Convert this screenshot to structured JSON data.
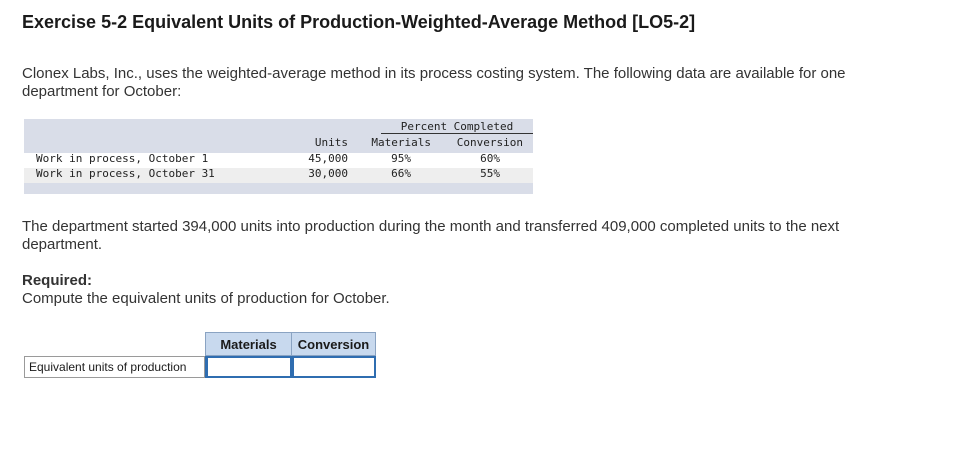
{
  "title": "Exercise 5-2 Equivalent Units of Production-Weighted-Average Method [LO5-2]",
  "intro": "Clonex Labs, Inc., uses the weighted-average method in its process costing system. The following data are available for one department for October:",
  "data_table": {
    "percent_completed_header": "Percent Completed",
    "col_units": "Units",
    "col_materials": "Materials",
    "col_conversion": "Conversion",
    "rows": [
      {
        "label": "Work in process, October 1",
        "units": "45,000",
        "materials": "95%",
        "conversion": "60%"
      },
      {
        "label": "Work in process, October 31",
        "units": "30,000",
        "materials": "66%",
        "conversion": "55%"
      }
    ]
  },
  "paragraph2": "The department started 394,000 units into production during the month and transferred 409,000 completed units to the next department.",
  "required": {
    "title": "Required:",
    "text": "Compute the equivalent units of production for October."
  },
  "answer_table": {
    "col_materials": "Materials",
    "col_conversion": "Conversion",
    "row_label": "Equivalent units of production",
    "materials_value": "",
    "conversion_value": ""
  }
}
